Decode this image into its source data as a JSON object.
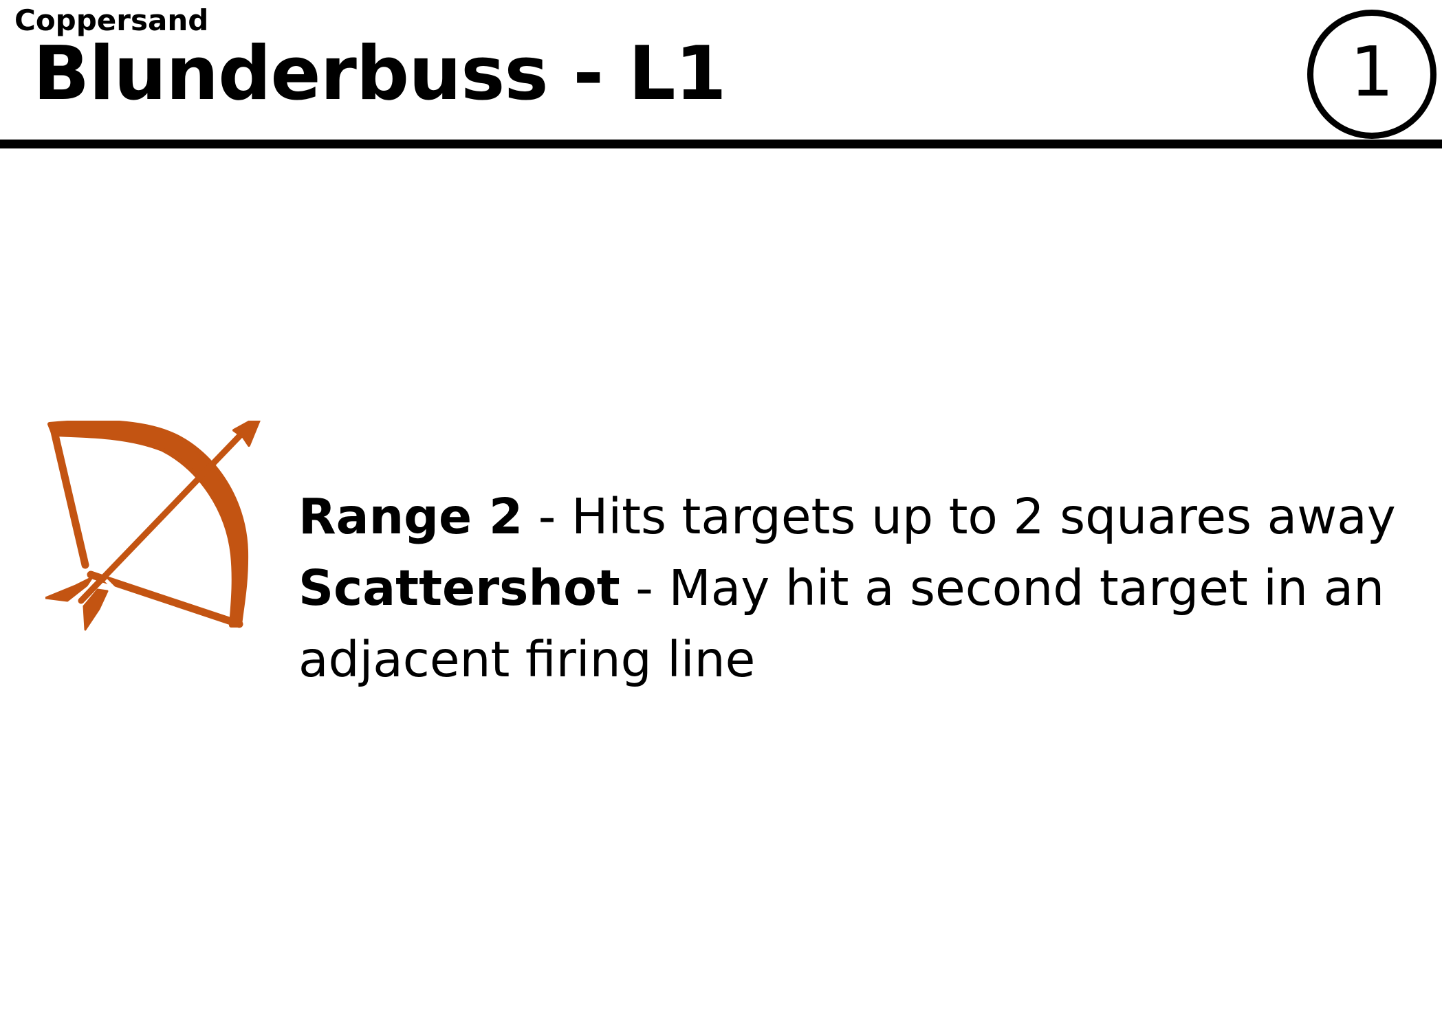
{
  "card": {
    "subtitle": "Coppersand",
    "title": "Blunderbuss - L1",
    "level": "1",
    "icon": "bow-and-arrow-icon",
    "icon_color": "#c35412",
    "abilities": [
      {
        "name": "Range 2",
        "separator": " - ",
        "description": "Hits targets up to 2 squares away"
      },
      {
        "name": "Scattershot",
        "separator": " - ",
        "description": "May hit a second target in an adjacent firing line"
      }
    ]
  }
}
